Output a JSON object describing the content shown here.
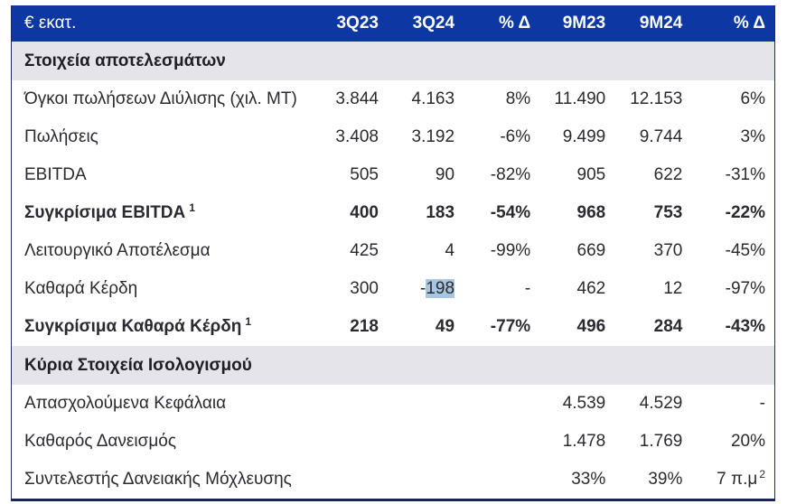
{
  "colors": {
    "header_bg": "#0d38a3",
    "section_bg": "#e4e4ea",
    "border": "#232a63",
    "selection_highlight": "#a9c6e0",
    "header_text": "#ffffff",
    "body_text": "#2a2a30"
  },
  "table": {
    "unit_label": "€ εκατ.",
    "columns": [
      "3Q23",
      "3Q24",
      "% Δ",
      "9M23",
      "9M24",
      "% Δ"
    ],
    "sections": [
      {
        "title": "Στοιχεία αποτελεσμάτων",
        "rows": [
          {
            "label": "Όγκοι πωλήσεων Διύλισης (χιλ. MT)",
            "bold": false,
            "values": [
              "3.844",
              "4.163",
              "8%",
              "11.490",
              "12.153",
              "6%"
            ]
          },
          {
            "label": "Πωλήσεις",
            "bold": false,
            "values": [
              "3.408",
              "3.192",
              "-6%",
              "9.499",
              "9.744",
              "3%"
            ]
          },
          {
            "label": "EBITDA",
            "bold": false,
            "values": [
              "505",
              "90",
              "-82%",
              "905",
              "622",
              "-31%"
            ]
          },
          {
            "label": "Συγκρίσιμα EBITDA",
            "footnote": "1",
            "bold": true,
            "values": [
              "400",
              "183",
              "-54%",
              "968",
              "753",
              "-22%"
            ]
          },
          {
            "label": "Λειτουργικό Αποτέλεσμα",
            "bold": false,
            "values": [
              "425",
              "4",
              "-99%",
              "669",
              "370",
              "-45%"
            ]
          },
          {
            "label": "Καθαρά Κέρδη",
            "bold": false,
            "values": [
              "300",
              "-198",
              "-",
              "462",
              "12",
              "-97%"
            ],
            "highlight": {
              "col": 1,
              "prefix": "-",
              "text": "198"
            }
          },
          {
            "label": "Συγκρίσιμα Καθαρά Κέρδη",
            "footnote": "1",
            "bold": true,
            "values": [
              "218",
              "49",
              "-77%",
              "496",
              "284",
              "-43%"
            ]
          }
        ]
      },
      {
        "title": "Κύρια Στοιχεία Ισολογισμού",
        "rows": [
          {
            "label": "Απασχολούμενα Κεφάλαια",
            "bold": false,
            "values": [
              "",
              "",
              "",
              "4.539",
              "4.529",
              "-"
            ]
          },
          {
            "label": "Καθαρός Δανεισμός",
            "bold": false,
            "values": [
              "",
              "",
              "",
              "1.478",
              "1.769",
              "20%"
            ]
          },
          {
            "label": "Συντελεστής Δανειακής Μόχλευσης",
            "bold": false,
            "values": [
              "",
              "",
              "",
              "33%",
              "39%",
              "7 π.μ"
            ],
            "value_footnote": {
              "col": 5,
              "sup": "2"
            }
          }
        ]
      }
    ]
  }
}
